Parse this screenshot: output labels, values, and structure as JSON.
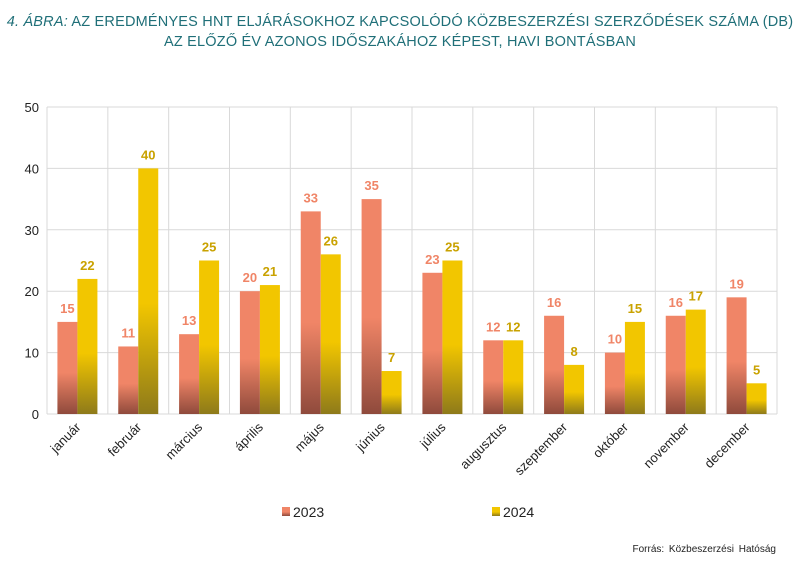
{
  "chart_data": {
    "type": "bar",
    "title_number": "4. ÁBRA:",
    "title_line1": "AZ EREDMÉNYES HNT ELJÁRÁSOKHOZ KAPCSOLÓDÓ KÖZBESZERZÉSI SZERZŐDÉSEK SZÁMA (DB)",
    "title_line2": "AZ ELŐZŐ ÉV AZONOS IDŐSZAKÁHOZ KÉPEST, HAVI BONTÁSBAN",
    "categories": [
      "január",
      "február",
      "március",
      "április",
      "május",
      "június",
      "július",
      "augusztus",
      "szeptember",
      "október",
      "november",
      "december"
    ],
    "series": [
      {
        "name": "2023",
        "values": [
          15,
          11,
          13,
          20,
          33,
          35,
          23,
          12,
          16,
          10,
          16,
          19
        ],
        "color_top": "#f08567",
        "color_bottom": "#8f4a3c",
        "label_color": "#f08567"
      },
      {
        "name": "2024",
        "values": [
          22,
          40,
          25,
          21,
          26,
          7,
          25,
          12,
          8,
          15,
          17,
          5
        ],
        "color_top": "#f2c600",
        "color_bottom": "#8e7a1a",
        "label_color": "#c9a200"
      }
    ],
    "ylim": [
      0,
      50
    ],
    "yticks": [
      0,
      10,
      20,
      30,
      40,
      50
    ],
    "xlabel": "",
    "ylabel": "",
    "grid": true,
    "legend_position": "bottom"
  },
  "source": "Forrás: Közbeszerzési Hatóság",
  "colors": {
    "title": "#1f6f78",
    "grid": "#d9d9d9",
    "axis_text": "#222222"
  }
}
